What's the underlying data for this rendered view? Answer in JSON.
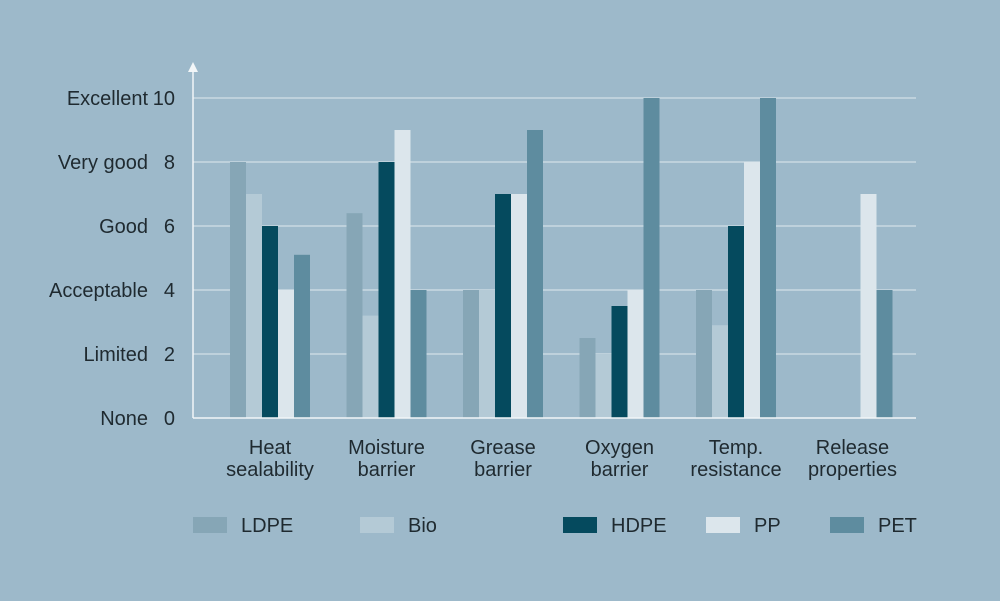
{
  "chart_data": {
    "type": "bar",
    "title": "",
    "xlabel": "",
    "ylabel": "",
    "ylim": [
      0,
      10
    ],
    "grid": true,
    "legend_placement": "bottom",
    "y_ticks": [
      0,
      2,
      4,
      6,
      8,
      10
    ],
    "y_tick_words": [
      "None",
      "Limited",
      "Acceptable",
      "Good",
      "Very good",
      "Excellent"
    ],
    "categories": [
      [
        "Heat",
        "sealability"
      ],
      [
        "Moisture",
        "barrier"
      ],
      [
        "Grease",
        "barrier"
      ],
      [
        "Oxygen",
        "barrier"
      ],
      [
        "Temp.",
        "resistance"
      ],
      [
        "Release",
        "properties"
      ]
    ],
    "series": [
      {
        "name": "LDPE",
        "color": "#86a6b6",
        "values": [
          8,
          6.4,
          4,
          2.5,
          4,
          0
        ]
      },
      {
        "name": "Bio",
        "color": "#b4cad6",
        "values": [
          7,
          3.2,
          4,
          2,
          2.9,
          0
        ]
      },
      {
        "name": "HDPE",
        "color": "#054a5e",
        "values": [
          6,
          8,
          7,
          3.5,
          6,
          0
        ]
      },
      {
        "name": "PP",
        "color": "#dce6ec",
        "values": [
          4,
          9,
          7,
          4,
          8,
          7
        ]
      },
      {
        "name": "PET",
        "color": "#5e8c9f",
        "values": [
          5.1,
          4,
          9,
          10,
          10,
          4
        ]
      }
    ]
  },
  "colors": {
    "background": "#9db9ca",
    "text": "#1f2a30",
    "axis": "#f2f6f8",
    "grid": "#dfe9ee"
  }
}
